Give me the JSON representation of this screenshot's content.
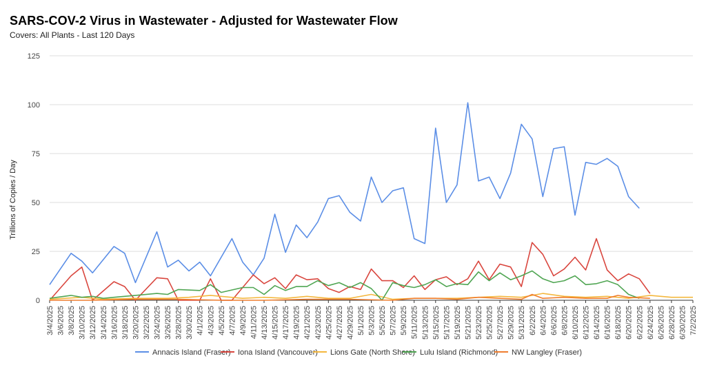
{
  "chart_data": {
    "type": "line",
    "title": "SARS-COV-2 Virus in Wastewater - Adjusted for Wastewater Flow",
    "subtitle": "Covers: All Plants - Last 120 Days",
    "ylabel": "Trillions of Copies / Day",
    "xlabel": "",
    "ylim": [
      0,
      125
    ],
    "yticks": [
      0,
      25,
      50,
      75,
      100,
      125
    ],
    "grid": true,
    "legend_position": "bottom",
    "x": [
      "3/4/2025",
      "3/6/2025",
      "3/8/2025",
      "3/10/2025",
      "3/12/2025",
      "3/14/2025",
      "3/16/2025",
      "3/18/2025",
      "3/20/2025",
      "3/22/2025",
      "3/24/2025",
      "3/26/2025",
      "3/28/2025",
      "3/30/2025",
      "4/1/2025",
      "4/3/2025",
      "4/5/2025",
      "4/7/2025",
      "4/9/2025",
      "4/11/2025",
      "4/13/2025",
      "4/15/2025",
      "4/17/2025",
      "4/19/2025",
      "4/21/2025",
      "4/23/2025",
      "4/25/2025",
      "4/27/2025",
      "4/29/2025",
      "5/1/2025",
      "5/3/2025",
      "5/5/2025",
      "5/7/2025",
      "5/9/2025",
      "5/11/2025",
      "5/13/2025",
      "5/15/2025",
      "5/17/2025",
      "5/19/2025",
      "5/21/2025",
      "5/23/2025",
      "5/25/2025",
      "5/27/2025",
      "5/29/2025",
      "5/31/2025",
      "6/2/2025",
      "6/4/2025",
      "6/6/2025",
      "6/8/2025",
      "6/10/2025",
      "6/12/2025",
      "6/14/2025",
      "6/16/2025",
      "6/18/2025",
      "6/20/2025",
      "6/22/2025",
      "6/24/2025",
      "6/26/2025",
      "6/28/2025",
      "6/30/2025",
      "7/2/2025"
    ],
    "series": [
      {
        "name": "Annacis Island (Fraser)",
        "color": "#5b8ee6",
        "points": [
          [
            0,
            8
          ],
          [
            2,
            24
          ],
          [
            3,
            20
          ],
          [
            4,
            14
          ],
          [
            6,
            27.5
          ],
          [
            7,
            24
          ],
          [
            8,
            9
          ],
          [
            10,
            35
          ],
          [
            11,
            17
          ],
          [
            12,
            20.5
          ],
          [
            13,
            15
          ],
          [
            14,
            19.5
          ],
          [
            15,
            12.5
          ],
          [
            17,
            31.5
          ],
          [
            18,
            19.5
          ],
          [
            19,
            13
          ],
          [
            20,
            21.5
          ],
          [
            21,
            44
          ],
          [
            22,
            24.5
          ],
          [
            23,
            38.5
          ],
          [
            24,
            32
          ],
          [
            25,
            40
          ],
          [
            26,
            52
          ],
          [
            27,
            53.5
          ],
          [
            28,
            45
          ],
          [
            29,
            40.5
          ],
          [
            30,
            63
          ],
          [
            31,
            50
          ],
          [
            32,
            56
          ],
          [
            33,
            57.5
          ],
          [
            34,
            31.5
          ],
          [
            35,
            29
          ],
          [
            36,
            88
          ],
          [
            37,
            50
          ],
          [
            38,
            59
          ],
          [
            39,
            101
          ],
          [
            40,
            61
          ],
          [
            41,
            63
          ],
          [
            42,
            52
          ],
          [
            43,
            65
          ],
          [
            44,
            90
          ],
          [
            45,
            82.5
          ],
          [
            46,
            53
          ],
          [
            47,
            77.5
          ],
          [
            48,
            78.5
          ],
          [
            49,
            43.5
          ],
          [
            50,
            70.5
          ],
          [
            51,
            69.5
          ],
          [
            52,
            72.5
          ],
          [
            53,
            68.5
          ],
          [
            54,
            53
          ],
          [
            55,
            47
          ]
        ]
      },
      {
        "name": "Iona Island (Vancouver)",
        "color": "#d9463e",
        "points": [
          [
            0,
            0
          ],
          [
            2,
            12.5
          ],
          [
            3,
            17
          ],
          [
            4,
            0
          ],
          [
            6,
            9.5
          ],
          [
            7,
            7
          ],
          [
            8,
            0
          ],
          [
            10,
            11.5
          ],
          [
            11,
            11
          ],
          [
            12,
            0
          ],
          [
            14,
            0
          ],
          [
            15,
            11
          ],
          [
            16,
            0
          ],
          [
            17,
            0
          ],
          [
            19,
            13
          ],
          [
            20,
            8.5
          ],
          [
            21,
            11.5
          ],
          [
            22,
            6
          ],
          [
            23,
            13
          ],
          [
            24,
            10.5
          ],
          [
            25,
            11
          ],
          [
            26,
            6
          ],
          [
            27,
            4
          ],
          [
            28,
            7
          ],
          [
            29,
            5.5
          ],
          [
            30,
            16
          ],
          [
            31,
            10
          ],
          [
            32,
            10
          ],
          [
            33,
            6.5
          ],
          [
            34,
            12.5
          ],
          [
            35,
            5.5
          ],
          [
            36,
            10.5
          ],
          [
            37,
            12
          ],
          [
            38,
            8
          ],
          [
            39,
            11
          ],
          [
            40,
            20
          ],
          [
            41,
            10.5
          ],
          [
            42,
            18.5
          ],
          [
            43,
            17
          ],
          [
            44,
            7
          ],
          [
            45,
            29.5
          ],
          [
            46,
            23.5
          ],
          [
            47,
            12.5
          ],
          [
            48,
            16
          ],
          [
            49,
            22
          ],
          [
            50,
            15.5
          ],
          [
            51,
            31.5
          ],
          [
            52,
            15.5
          ],
          [
            53,
            10
          ],
          [
            54,
            13.5
          ],
          [
            55,
            11
          ],
          [
            56,
            3.5
          ]
        ]
      },
      {
        "name": "Lions Gate (North Shore)",
        "color": "#f4b73d",
        "points": [
          [
            0,
            0.5
          ],
          [
            3,
            1.5
          ],
          [
            5,
            0.5
          ],
          [
            8,
            1
          ],
          [
            11,
            1
          ],
          [
            13,
            1.5
          ],
          [
            15,
            2.5
          ],
          [
            18,
            1
          ],
          [
            20,
            1.5
          ],
          [
            22,
            1
          ],
          [
            24,
            2
          ],
          [
            26,
            1
          ],
          [
            28,
            1
          ],
          [
            30,
            3
          ],
          [
            32,
            0.5
          ],
          [
            34,
            1
          ],
          [
            36,
            1
          ],
          [
            38,
            1
          ],
          [
            40,
            1.5
          ],
          [
            42,
            2
          ],
          [
            44,
            1.5
          ],
          [
            46,
            3.5
          ],
          [
            48,
            2
          ],
          [
            50,
            1.5
          ],
          [
            52,
            2
          ],
          [
            54,
            1
          ],
          [
            56,
            2.5
          ],
          [
            58,
            1.5
          ],
          [
            60,
            1.5
          ]
        ]
      },
      {
        "name": "Lulu Island (Richmond)",
        "color": "#4fa552",
        "points": [
          [
            0,
            1
          ],
          [
            2,
            2.5
          ],
          [
            3,
            1.5
          ],
          [
            4,
            2
          ],
          [
            5,
            1
          ],
          [
            6,
            1.5
          ],
          [
            7,
            2
          ],
          [
            8,
            2.5
          ],
          [
            10,
            3.5
          ],
          [
            11,
            3
          ],
          [
            12,
            5.5
          ],
          [
            14,
            5
          ],
          [
            15,
            8
          ],
          [
            16,
            4
          ],
          [
            18,
            6.5
          ],
          [
            19,
            6.5
          ],
          [
            20,
            3
          ],
          [
            21,
            7.5
          ],
          [
            22,
            5
          ],
          [
            23,
            7
          ],
          [
            24,
            7
          ],
          [
            25,
            10
          ],
          [
            26,
            7.5
          ],
          [
            27,
            9
          ],
          [
            28,
            6.5
          ],
          [
            29,
            9
          ],
          [
            30,
            6
          ],
          [
            31,
            0
          ],
          [
            32,
            9
          ],
          [
            33,
            7.5
          ],
          [
            34,
            6.5
          ],
          [
            35,
            8
          ],
          [
            36,
            10.5
          ],
          [
            37,
            7
          ],
          [
            38,
            8.5
          ],
          [
            39,
            8
          ],
          [
            40,
            14.5
          ],
          [
            41,
            10
          ],
          [
            42,
            14
          ],
          [
            43,
            10.5
          ],
          [
            44,
            12.5
          ],
          [
            45,
            15
          ],
          [
            46,
            11
          ],
          [
            47,
            9
          ],
          [
            48,
            10
          ],
          [
            49,
            12.5
          ],
          [
            50,
            8
          ],
          [
            51,
            8.5
          ],
          [
            52,
            10
          ],
          [
            53,
            8
          ],
          [
            54,
            3
          ],
          [
            55,
            1
          ]
        ]
      },
      {
        "name": "NW Langley (Fraser)",
        "color": "#ef7d2e",
        "points": [
          [
            0,
            0
          ],
          [
            4,
            0
          ],
          [
            8,
            0.5
          ],
          [
            12,
            0.5
          ],
          [
            16,
            0
          ],
          [
            20,
            0
          ],
          [
            24,
            0.5
          ],
          [
            28,
            0.5
          ],
          [
            32,
            0
          ],
          [
            34,
            1
          ],
          [
            36,
            1
          ],
          [
            38,
            0.5
          ],
          [
            40,
            1.5
          ],
          [
            42,
            1
          ],
          [
            44,
            0.5
          ],
          [
            45,
            3
          ],
          [
            46,
            1
          ],
          [
            48,
            1.5
          ],
          [
            50,
            1
          ],
          [
            52,
            1
          ],
          [
            53,
            2.5
          ],
          [
            54,
            1.5
          ],
          [
            56,
            1
          ]
        ]
      }
    ]
  }
}
